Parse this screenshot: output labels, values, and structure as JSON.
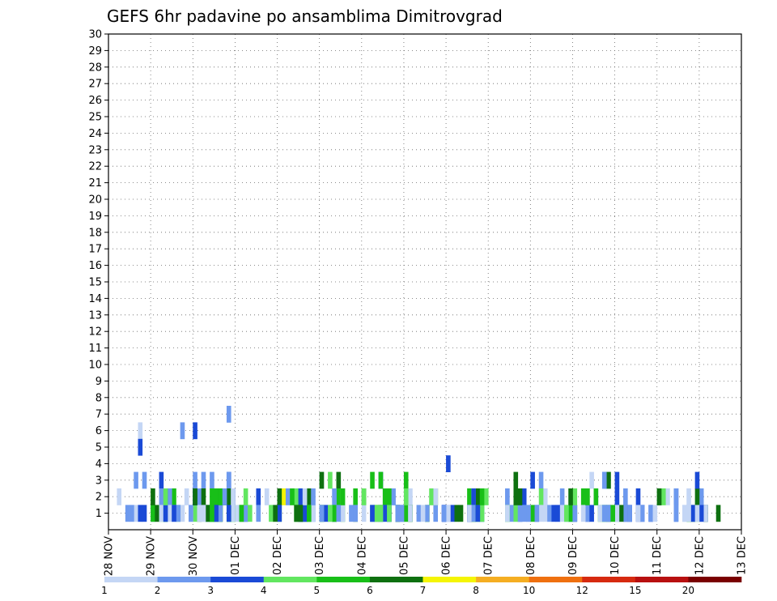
{
  "chart_data": {
    "type": "heatmap",
    "title": "GEFS 6hr padavine po ansamblima Dimitrovgrad",
    "x_ticks": [
      "28 NOV",
      "29 NOV",
      "30 NOV",
      "01 DEC",
      "02 DEC",
      "03 DEC",
      "04 DEC",
      "05 DEC",
      "06 DEC",
      "07 DEC",
      "08 DEC",
      "09 DEC",
      "10 DEC",
      "11 DEC",
      "12 DEC",
      "13 DEC"
    ],
    "y_ticks": [
      "1",
      "2",
      "3",
      "4",
      "5",
      "6",
      "7",
      "8",
      "9",
      "10",
      "11",
      "12",
      "13",
      "14",
      "15",
      "16",
      "17",
      "18",
      "19",
      "20",
      "21",
      "22",
      "23",
      "24",
      "25",
      "26",
      "27",
      "28",
      "29",
      "30"
    ],
    "x_range_days": [
      0,
      15
    ],
    "y_range": [
      0,
      30
    ],
    "grid": "dotted",
    "legend": {
      "position": "bottom",
      "bounds": [
        1,
        2,
        3,
        4,
        5,
        6,
        7,
        8,
        10,
        12,
        15,
        20
      ],
      "colors": [
        "#c4d6f5",
        "#6d99ee",
        "#1a4ad6",
        "#62e660",
        "#18bf18",
        "#0e7010",
        "#f5f504",
        "#f5ae22",
        "#ef7010",
        "#d62a10",
        "#b81010",
        "#7a0000"
      ]
    },
    "cells": [
      [
        6,
        7,
        0
      ],
      [
        6,
        17,
        1
      ],
      [
        6,
        20,
        2
      ],
      [
        1,
        30,
        0
      ],
      [
        3,
        28,
        2
      ],
      [
        1,
        40,
        3
      ],
      [
        2,
        53,
        0
      ],
      [
        3,
        62,
        4
      ],
      [
        1,
        58,
        5
      ],
      [
        2,
        67,
        0
      ],
      [
        2,
        77,
        5
      ],
      [
        4,
        80,
        2
      ],
      [
        1,
        88,
        2
      ],
      [
        1,
        99,
        0
      ],
      [
        1,
        103,
        0
      ],
      [
        1,
        109,
        2
      ],
      [
        1,
        110,
        5
      ],
      [
        3,
        114,
        0
      ],
      [
        3,
        117,
        1
      ],
      [
        1,
        126,
        2
      ],
      [
        1,
        137,
        4
      ],
      [
        1,
        144,
        5
      ],
      [
        2,
        14,
        0
      ],
      [
        3,
        20,
        1
      ],
      [
        1,
        13,
        2
      ],
      [
        3,
        28,
        1
      ],
      [
        2,
        46,
        1
      ],
      [
        2,
        41,
        6
      ],
      [
        1,
        52,
        0
      ],
      [
        3,
        54,
        5
      ],
      [
        3,
        64,
        2
      ],
      [
        2,
        85,
        4
      ],
      [
        1,
        68,
        4
      ],
      [
        1,
        96,
        0
      ],
      [
        2,
        107,
        1
      ],
      [
        3,
        120,
        2
      ],
      [
        1,
        113,
        2
      ],
      [
        2,
        130,
        0
      ],
      [
        7,
        28,
        1
      ],
      [
        1,
        29,
        4
      ],
      [
        2,
        14,
        2
      ],
      [
        1,
        38,
        3
      ],
      [
        2,
        40,
        5
      ],
      [
        2,
        44,
        3
      ],
      [
        3,
        50,
        0
      ],
      [
        3,
        64,
        1
      ],
      [
        1,
        81,
        2
      ],
      [
        2,
        89,
        3
      ],
      [
        1,
        101,
        0
      ],
      [
        1,
        122,
        2
      ],
      [
        1,
        137,
        4
      ],
      [
        1,
        139,
        3
      ],
      [
        2,
        94,
        0
      ],
      [
        2,
        140,
        1
      ],
      [
        5,
        7,
        2
      ],
      [
        1,
        20,
        3
      ],
      [
        1,
        25,
        4
      ],
      [
        1,
        24,
        2
      ],
      [
        2,
        47,
        5
      ],
      [
        2,
        42,
        1
      ],
      [
        1,
        32,
        2
      ],
      [
        1,
        62,
        3
      ],
      [
        3,
        70,
        4
      ],
      [
        2,
        77,
        4
      ],
      [
        1,
        85,
        0
      ],
      [
        3,
        118,
        5
      ],
      [
        1,
        128,
        2
      ],
      [
        2,
        134,
        2
      ],
      [
        1,
        136,
        0
      ],
      [
        2,
        94,
        1
      ],
      [
        3,
        12,
        2
      ],
      [
        1,
        17,
        0
      ],
      [
        1,
        16,
        3
      ],
      [
        3,
        24,
        1
      ],
      [
        2,
        45,
        2
      ],
      [
        1,
        53,
        4
      ],
      [
        2,
        65,
        0
      ],
      [
        1,
        71,
        1
      ],
      [
        2,
        87,
        0
      ],
      [
        1,
        95,
        1
      ],
      [
        2,
        98,
        2
      ],
      [
        1,
        116,
        4
      ],
      [
        2,
        103,
        0
      ],
      [
        1,
        109,
        4
      ],
      [
        1,
        110,
        1
      ],
      [
        1,
        24,
        4
      ],
      [
        1,
        29,
        3
      ],
      [
        2,
        35,
        2
      ],
      [
        3,
        50,
        5
      ],
      [
        1,
        66,
        3
      ],
      [
        1,
        68,
        2
      ],
      [
        2,
        71,
        0
      ],
      [
        1,
        83,
        5
      ],
      [
        1,
        88,
        1
      ],
      [
        3,
        102,
        1
      ],
      [
        1,
        117,
        3
      ],
      [
        2,
        13,
        1
      ],
      [
        1,
        13,
        4
      ],
      [
        1,
        22,
        0
      ],
      [
        2,
        29,
        2
      ],
      [
        1,
        35,
        1
      ],
      [
        3,
        52,
        3
      ],
      [
        2,
        54,
        4
      ],
      [
        1,
        47,
        5
      ],
      [
        1,
        52,
        0
      ],
      [
        2,
        60,
        5
      ],
      [
        2,
        65,
        4
      ],
      [
        1,
        75,
        3
      ],
      [
        2,
        76,
        3
      ],
      [
        1,
        79,
        0
      ],
      [
        1,
        86,
        5
      ],
      [
        1,
        94,
        4
      ],
      [
        1,
        10,
        1
      ],
      [
        1,
        10,
        4
      ],
      [
        2,
        10,
        5
      ],
      [
        2,
        14,
        0
      ],
      [
        2,
        20,
        2
      ],
      [
        1,
        24,
        4
      ],
      [
        3,
        28,
        1
      ],
      [
        1,
        51,
        2
      ],
      [
        1,
        66,
        0
      ],
      [
        2,
        67,
        1
      ],
      [
        1,
        63,
        5
      ],
      [
        1,
        71,
        5
      ],
      [
        2,
        87,
        5
      ],
      [
        1,
        97,
        1
      ],
      [
        1,
        100,
        4
      ],
      [
        1,
        110,
        1
      ],
      [
        2,
        115,
        1
      ],
      [
        1,
        123,
        0
      ],
      [
        1,
        128,
        1
      ],
      [
        1,
        129,
        0
      ],
      [
        1,
        138,
        5
      ],
      [
        1,
        6,
        0
      ],
      [
        1,
        5,
        1
      ],
      [
        1,
        7,
        2
      ],
      [
        1,
        19,
        0
      ],
      [
        1,
        21,
        5
      ],
      [
        1,
        24,
        3
      ],
      [
        1,
        26,
        5
      ],
      [
        1,
        28,
        3
      ],
      [
        1,
        50,
        4
      ],
      [
        1,
        45,
        5
      ],
      [
        1,
        47,
        3
      ],
      [
        1,
        50,
        4
      ],
      [
        1,
        66,
        3
      ],
      [
        1,
        68,
        5
      ],
      [
        1,
        75,
        5
      ],
      [
        1,
        85,
        2
      ],
      [
        2,
        86,
        0
      ],
      [
        1,
        94,
        0
      ],
      [
        2,
        115,
        4
      ],
      [
        1,
        126,
        0
      ],
      [
        1,
        138,
        2
      ],
      [
        2,
        139,
        5
      ],
      [
        2,
        18,
        0
      ],
      [
        1,
        19,
        1
      ],
      [
        2,
        20,
        5
      ],
      [
        3,
        22,
        1
      ],
      [
        2,
        24,
        4
      ],
      [
        1,
        25,
        0
      ],
      [
        1,
        31,
        5
      ],
      [
        1,
        46,
        5
      ],
      [
        1,
        48,
        1
      ],
      [
        1,
        53,
        2
      ],
      [
        1,
        64,
        4
      ],
      [
        1,
        65,
        2
      ],
      [
        1,
        69,
        2
      ],
      [
        1,
        71,
        4
      ],
      [
        1,
        77,
        1
      ],
      [
        2,
        77,
        4
      ],
      [
        1,
        97,
        1
      ],
      [
        3,
        100,
        2
      ],
      [
        3,
        117,
        1
      ],
      [
        2,
        120,
        2
      ],
      [
        1,
        116,
        0
      ],
      [
        1,
        141,
        2
      ],
      [
        2,
        2,
        0
      ],
      [
        2,
        15,
        4
      ],
      [
        1,
        11,
        5
      ],
      [
        2,
        25,
        4
      ],
      [
        1,
        25,
        5
      ],
      [
        1,
        29,
        0
      ],
      [
        1,
        32,
        1
      ],
      [
        1,
        40,
        2
      ],
      [
        2,
        43,
        4
      ],
      [
        1,
        46,
        2
      ],
      [
        1,
        60,
        0
      ],
      [
        1,
        66,
        1
      ],
      [
        1,
        73,
        1
      ],
      [
        1,
        79,
        1
      ],
      [
        2,
        86,
        2
      ],
      [
        1,
        96,
        3
      ],
      [
        1,
        101,
        2
      ],
      [
        1,
        106,
        0
      ],
      [
        1,
        108,
        1
      ],
      [
        2,
        112,
        4
      ],
      [
        1,
        118,
        1
      ],
      [
        1,
        122,
        1
      ],
      [
        2,
        125,
        2
      ],
      [
        1,
        134,
        0
      ],
      [
        1,
        141,
        5
      ],
      [
        3,
        6,
        1
      ],
      [
        2,
        21,
        0
      ],
      [
        1,
        23,
        4
      ],
      [
        2,
        26,
        5
      ],
      [
        2,
        27,
        5
      ],
      [
        1,
        33,
        3
      ],
      [
        1,
        39,
        5
      ],
      [
        1,
        44,
        4
      ],
      [
        2,
        55,
        3
      ],
      [
        2,
        66,
        4
      ],
      [
        1,
        70,
        0
      ],
      [
        1,
        79,
        2
      ],
      [
        3,
        96,
        5
      ],
      [
        2,
        102,
        3
      ],
      [
        1,
        117,
        0
      ],
      [
        1,
        118,
        5
      ],
      [
        1,
        134,
        0
      ],
      [
        1,
        12,
        3
      ],
      [
        1,
        15,
        0
      ],
      [
        1,
        23,
        1
      ],
      [
        1,
        26,
        4
      ],
      [
        1,
        28,
        4
      ],
      [
        1,
        44,
        3
      ],
      [
        1,
        50,
        1
      ],
      [
        1,
        55,
        4
      ],
      [
        2,
        77,
        0
      ],
      [
        1,
        80,
        1
      ],
      [
        2,
        96,
        5
      ],
      [
        1,
        102,
        0
      ],
      [
        1,
        123,
        0
      ],
      [
        1,
        137,
        0
      ],
      [
        2,
        14,
        1
      ],
      [
        1,
        16,
        1
      ],
      [
        1,
        26,
        1
      ],
      [
        2,
        28,
        5
      ],
      [
        1,
        45,
        1
      ],
      [
        2,
        46,
        0
      ],
      [
        1,
        55,
        0
      ],
      [
        1,
        64,
        2
      ],
      [
        1,
        79,
        2
      ],
      [
        1,
        82,
        5
      ],
      [
        1,
        86,
        4
      ],
      [
        1,
        99,
        1
      ],
      [
        1,
        117,
        4
      ],
      [
        1,
        123,
        0
      ],
      [
        2,
        130,
        4
      ],
      [
        2,
        13,
        2
      ],
      [
        1,
        14,
        0
      ],
      [
        2,
        21,
        1
      ],
      [
        2,
        26,
        4
      ],
      [
        1,
        45,
        5
      ],
      [
        1,
        48,
        0
      ],
      [
        2,
        53,
        1
      ],
      [
        3,
        64,
        4
      ],
      [
        1,
        86,
        1
      ],
      [
        1,
        94,
        3
      ],
      [
        1,
        123,
        2
      ],
      [
        1,
        125,
        2
      ],
      [
        1,
        8,
        2
      ],
      [
        2,
        12,
        1
      ],
      [
        1,
        21,
        0
      ],
      [
        1,
        28,
        2
      ],
      [
        2,
        37,
        0
      ],
      [
        1,
        45,
        2
      ],
      [
        1,
        57,
        1
      ],
      [
        2,
        60,
        3
      ],
      [
        1,
        64,
        1
      ],
      [
        1,
        70,
        4
      ],
      [
        1,
        75,
        1
      ],
      [
        1,
        80,
        0
      ],
      [
        1,
        101,
        1
      ],
      [
        1,
        106,
        2
      ],
      [
        1,
        110,
        1
      ],
      [
        1,
        113,
        1
      ],
      [
        1,
        120,
        1
      ],
      [
        2,
        122,
        1
      ],
      [
        2,
        132,
        0
      ],
      [
        3,
        139,
        2
      ],
      [
        1,
        4,
        1
      ],
      [
        2,
        20,
        2
      ],
      [
        1,
        23,
        5
      ],
      [
        1,
        25,
        2
      ],
      [
        2,
        32,
        3
      ],
      [
        1,
        44,
        5
      ],
      [
        1,
        53,
        4
      ],
      [
        2,
        58,
        4
      ],
      [
        1,
        62,
        1
      ],
      [
        2,
        70,
        3
      ],
      [
        1,
        85,
        2
      ],
      [
        1,
        87,
        4
      ],
      [
        1,
        97,
        1
      ],
      [
        2,
        110,
        3
      ],
      [
        1,
        126,
        1
      ],
      [
        2,
        131,
        3
      ],
      [
        1,
        136,
        0
      ],
      [
        1,
        141,
        0
      ],
      [
        3,
        8,
        1
      ],
      [
        1,
        12,
        0
      ],
      [
        1,
        13,
        2
      ],
      [
        2,
        22,
        5
      ],
      [
        1,
        24,
        4
      ],
      [
        2,
        29,
        0
      ],
      [
        1,
        54,
        1
      ],
      [
        1,
        63,
        3
      ],
      [
        1,
        68,
        1
      ],
      [
        1,
        74,
        0
      ],
      [
        1,
        85,
        0
      ],
      [
        1,
        88,
        3
      ],
      [
        1,
        107,
        0
      ],
      [
        2,
        109,
        5
      ],
      [
        1,
        114,
        2
      ],
      [
        1,
        118,
        1
      ],
      [
        1,
        121,
        5
      ],
      [
        1,
        125,
        0
      ],
      [
        2,
        130,
        5
      ],
      [
        1,
        134,
        1
      ],
      [
        1,
        140,
        0
      ],
      [
        2,
        13,
        3
      ],
      [
        2,
        20,
        5
      ],
      [
        1,
        45,
        5
      ],
      [
        1,
        50,
        1
      ],
      [
        1,
        52,
        3
      ],
      [
        2,
        55,
        4
      ],
      [
        1,
        64,
        3
      ],
      [
        1,
        66,
        2
      ],
      [
        1,
        69,
        1
      ],
      [
        1,
        87,
        2
      ],
      [
        1,
        94,
        0
      ],
      [
        1,
        98,
        1
      ],
      [
        1,
        104,
        1
      ],
      [
        1,
        112,
        0
      ],
      [
        2,
        113,
        4
      ],
      [
        1,
        120,
        0
      ],
      [
        1,
        123,
        1
      ],
      [
        1,
        134,
        1
      ],
      [
        2,
        137,
        0
      ],
      [
        1,
        140,
        2
      ],
      [
        1,
        15,
        2
      ],
      [
        1,
        22,
        0
      ],
      [
        2,
        27,
        1
      ],
      [
        1,
        31,
        4
      ],
      [
        1,
        47,
        4
      ],
      [
        2,
        48,
        1
      ],
      [
        1,
        58,
        1
      ],
      [
        1,
        62,
        2
      ],
      [
        1,
        66,
        3
      ],
      [
        1,
        71,
        0
      ],
      [
        1,
        79,
        1
      ],
      [
        2,
        88,
        4
      ],
      [
        2,
        97,
        5
      ],
      [
        1,
        105,
        2
      ],
      [
        1,
        108,
        3
      ],
      [
        1,
        117,
        1
      ],
      [
        1,
        119,
        4
      ],
      [
        2,
        134,
        1
      ],
      [
        1,
        139,
        0
      ]
    ]
  }
}
